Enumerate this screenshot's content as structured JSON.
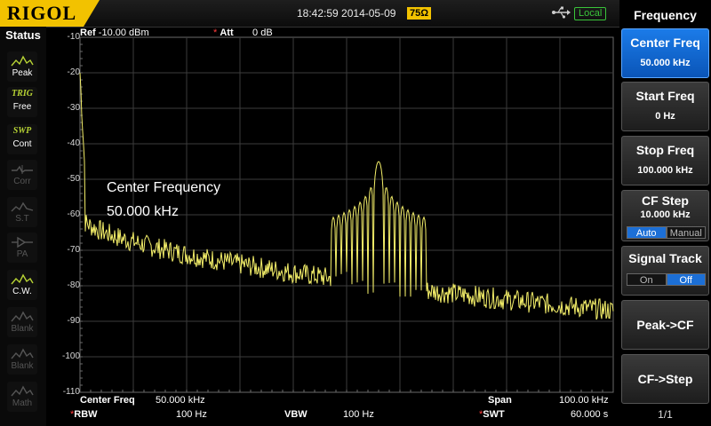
{
  "topbar": {
    "logo": "RIGOL",
    "datetime": "18:42:59 2014-05-09",
    "impedance": "75Ω",
    "remote_status": "Local"
  },
  "status": {
    "title": "Status",
    "items": [
      {
        "label": "Peak",
        "icon": "peak-icon",
        "active": true
      },
      {
        "label": "Free",
        "top": "TRIG",
        "icon": "trig-icon",
        "active": true
      },
      {
        "label": "Cont",
        "top": "SWP",
        "icon": "sweep-icon",
        "active": true
      },
      {
        "label": "Corr",
        "icon": "corr-icon",
        "active": false
      },
      {
        "label": "S.T",
        "icon": "st-icon",
        "active": false
      },
      {
        "label": "PA",
        "icon": "pa-icon",
        "active": false
      },
      {
        "label": "C.W.",
        "icon": "cw-icon",
        "active": true
      },
      {
        "label": "Blank",
        "icon": "blank-icon",
        "active": false
      },
      {
        "label": "Blank",
        "icon": "blank-icon",
        "active": false
      },
      {
        "label": "Math",
        "icon": "math-icon",
        "active": false
      }
    ]
  },
  "plot": {
    "ref_label": "Ref",
    "ref_value": "-10.00 dBm",
    "att_star": "*",
    "att_label": "Att",
    "att_value": "0 dB",
    "y_ticks": [
      "-10",
      "-20",
      "-30",
      "-40",
      "-50",
      "-60",
      "-70",
      "-80",
      "-90",
      "-100",
      "-110"
    ],
    "annotation_line1": "Center Frequency",
    "annotation_line2": "50.000 kHz",
    "trace_color": "#f5f06a"
  },
  "bottom": {
    "center_label": "Center Freq",
    "center_value": "50.000 kHz",
    "span_label": "Span",
    "span_value": "100.00 kHz",
    "rbw_star": "*",
    "rbw_label": "RBW",
    "rbw_value": "100 Hz",
    "vbw_label": "VBW",
    "vbw_value": "100 Hz",
    "swt_star": "*",
    "swt_label": "SWT",
    "swt_value": "60.000 s"
  },
  "menu": {
    "title": "Frequency",
    "center_freq": {
      "label": "Center Freq",
      "value": "50.000 kHz"
    },
    "start_freq": {
      "label": "Start Freq",
      "value": "0 Hz"
    },
    "stop_freq": {
      "label": "Stop Freq",
      "value": "100.000 kHz"
    },
    "cf_step": {
      "label": "CF Step",
      "value": "10.000 kHz",
      "opt_auto": "Auto",
      "opt_manual": "Manual"
    },
    "signal_track": {
      "label": "Signal Track",
      "opt_on": "On",
      "opt_off": "Off"
    },
    "peak_cf": {
      "label": "Peak->CF"
    },
    "cf_step_btn": {
      "label": "CF->Step"
    },
    "page": "1/1"
  }
}
